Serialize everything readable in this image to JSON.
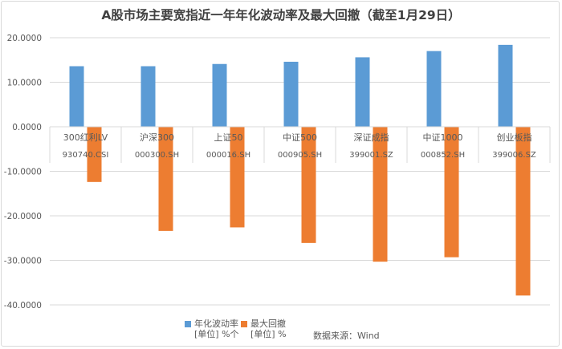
{
  "title": "A股市场主要宽指近一年年化波动率及最大回撤（截至1月29日）",
  "colors": {
    "vol": "#5b9bd5",
    "dd": "#ed7d31",
    "grid": "#d9d9d9",
    "text": "#595959"
  },
  "legend": [
    {
      "name": "年化波动率",
      "unit": "[单位] %个"
    },
    {
      "name": "最大回撤",
      "unit": "[单位] %"
    }
  ],
  "source": "数据来源：Wind",
  "chart_data": {
    "type": "bar",
    "title": "A股市场主要宽指近一年年化波动率及最大回撤（截至1月29日）",
    "categories": [
      {
        "name": "300红利LV",
        "code": "930740.CSI"
      },
      {
        "name": "沪深300",
        "code": "000300.SH"
      },
      {
        "name": "上证50",
        "code": "000016.SH"
      },
      {
        "name": "中证500",
        "code": "000905.SH"
      },
      {
        "name": "深证成指",
        "code": "399001.SZ"
      },
      {
        "name": "中证1000",
        "code": "000852.SH"
      },
      {
        "name": "创业板指",
        "code": "399006.SZ"
      }
    ],
    "series": [
      {
        "name": "年化波动率",
        "values": [
          13.6,
          13.6,
          14.1,
          14.6,
          15.6,
          17.0,
          18.4
        ]
      },
      {
        "name": "最大回撤",
        "values": [
          -12.4,
          -23.4,
          -22.6,
          -26.1,
          -30.3,
          -29.3,
          -37.9
        ]
      }
    ],
    "yticks": [
      "20.0000",
      "10.0000",
      "0.0000",
      "-10.0000",
      "-20.0000",
      "-30.0000",
      "-40.0000"
    ],
    "ylim": [
      -40,
      20
    ],
    "grid": true,
    "legend_position": "bottom"
  }
}
